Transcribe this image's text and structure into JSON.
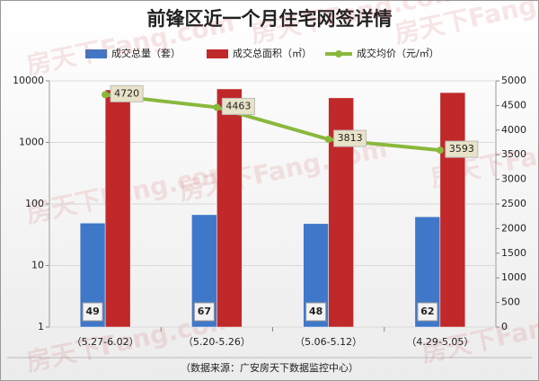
{
  "chart_data": {
    "type": "bar-line",
    "title": "前锋区近一个月住宅网签详情",
    "categories": [
      "（5.27-6.02）",
      "（5.20-5.26）",
      "（5.06-5.12）",
      "（4.29-5.05）"
    ],
    "series": [
      {
        "name": "成交总量（套）",
        "color": "#3f78c8",
        "values": [
          49,
          67,
          48,
          62
        ]
      },
      {
        "name": "成交总面积（㎡）",
        "color": "#c0282a",
        "values": [
          7150,
          7400,
          5300,
          6450
        ]
      },
      {
        "name": "成交均价（元/㎡）",
        "color": "#8ab83c",
        "type": "line",
        "axis": "y2",
        "values": [
          4720,
          4463,
          3813,
          3593
        ]
      }
    ],
    "ylim": [
      1,
      10000
    ],
    "yticks": [
      1,
      10,
      100,
      1000,
      10000
    ],
    "log": true,
    "y2lim": [
      0,
      5000
    ],
    "y2ticks": [
      0,
      500,
      1000,
      1500,
      2000,
      2500,
      3000,
      3500,
      4000,
      4500,
      5000
    ],
    "grid": true,
    "labeled_series": [
      0,
      2
    ],
    "source": "（数据来源：广安房天下数据监控中心）",
    "watermark": "房天下Fang.com"
  }
}
